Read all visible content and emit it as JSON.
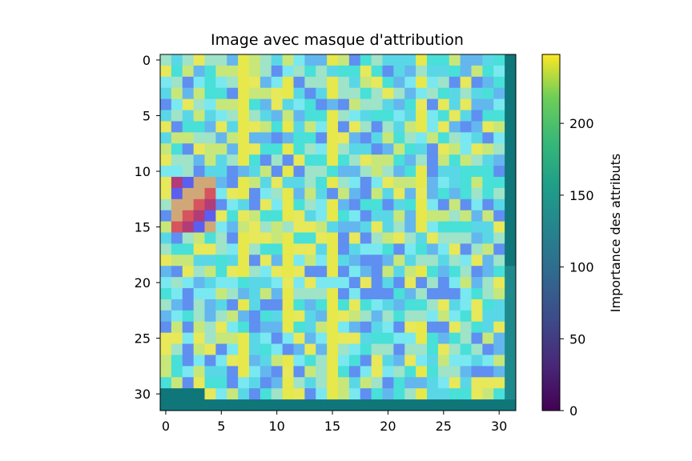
{
  "chart_data": {
    "type": "heatmap",
    "title": "Image avec masque d'attribution",
    "x_ticks": [
      "0",
      "5",
      "10",
      "15",
      "20",
      "25",
      "30"
    ],
    "y_ticks": [
      "0",
      "5",
      "10",
      "15",
      "20",
      "25",
      "30"
    ],
    "x_range": [
      -0.5,
      31.5
    ],
    "y_range": [
      -0.5,
      31.5
    ],
    "grid_size": 32,
    "colorbar": {
      "label": "Importance des attributs",
      "ticks": [
        "0",
        "50",
        "100",
        "150",
        "200"
      ],
      "range": [
        0,
        248
      ],
      "colormap": "viridis"
    },
    "palette": [
      "#5f8ff0",
      "#63b7ee",
      "#5ad7e6",
      "#48e0d8",
      "#7ae8f0",
      "#9fe3c8",
      "#c8e77a",
      "#e7e85a",
      "#5a5ff0",
      "#40c7d0"
    ],
    "accent_colors": {
      "teal_mask": "#0f767a",
      "bright_yellow": "#e6e84b",
      "red_patch": "#d6545e",
      "magenta": "#b23c78",
      "orange": "#d0a878"
    }
  }
}
